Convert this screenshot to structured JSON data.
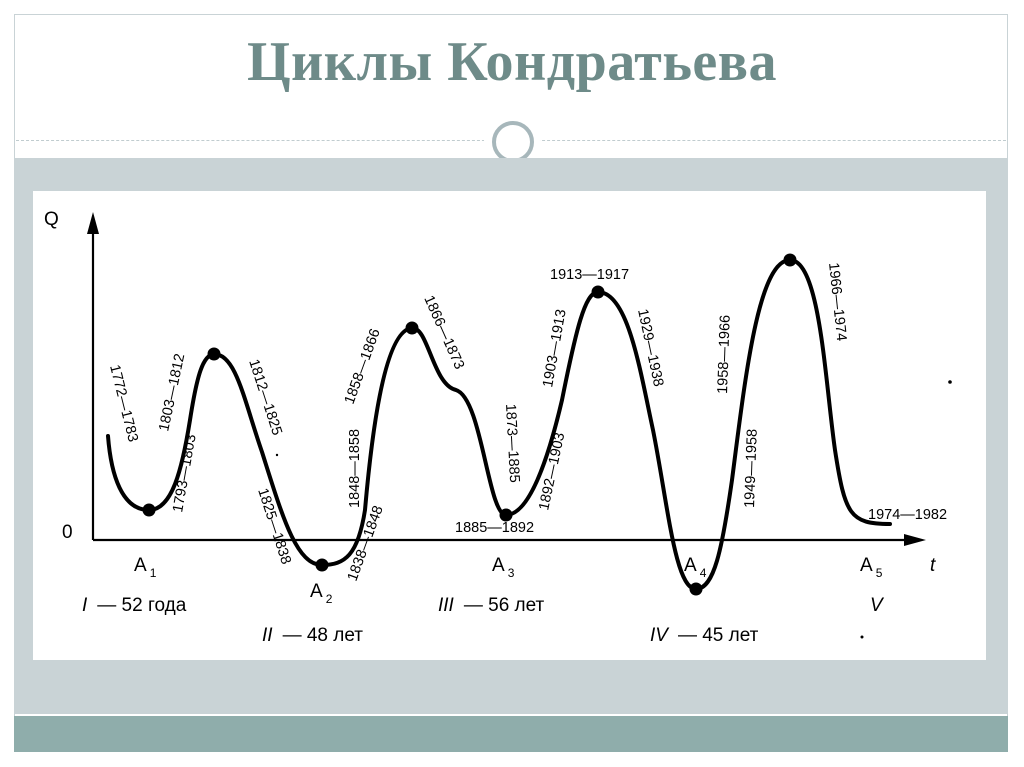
{
  "slide": {
    "title": "Циклы Кондратьева"
  },
  "diagram": {
    "axis_y_label": "Q",
    "axis_x_label": "t",
    "origin_label": "0",
    "troughs": [
      {
        "letter": "A",
        "sub": "1"
      },
      {
        "letter": "A",
        "sub": "2"
      },
      {
        "letter": "A",
        "sub": "3"
      },
      {
        "letter": "A",
        "sub": "4"
      },
      {
        "letter": "A",
        "sub": "5"
      }
    ],
    "cycles": [
      {
        "roman": "I",
        "text": "— 52 года"
      },
      {
        "roman": "II",
        "text": "— 48 лет"
      },
      {
        "roman": "III",
        "text": "— 56 лет"
      },
      {
        "roman": "IV",
        "text": "— 45 лет"
      },
      {
        "roman": "V",
        "text": ""
      }
    ],
    "period_labels": [
      "1772—1783",
      "1793—1803",
      "1803—1812",
      "1812—1825",
      "1825—1838",
      "1838—1848",
      "1848—1858",
      "1858—1866",
      "1866—1873",
      "1873—1885",
      "1885—1892",
      "1892—1903",
      "1903—1913",
      "1913—1917",
      "1929—1938",
      "1949—1958",
      "1958—1966",
      "1966—1974",
      "1974—1982"
    ],
    "colors": {
      "curve": "#000000",
      "title": "#6e8b89",
      "band": "#c9d3d6",
      "footer": "#8fadab"
    }
  }
}
